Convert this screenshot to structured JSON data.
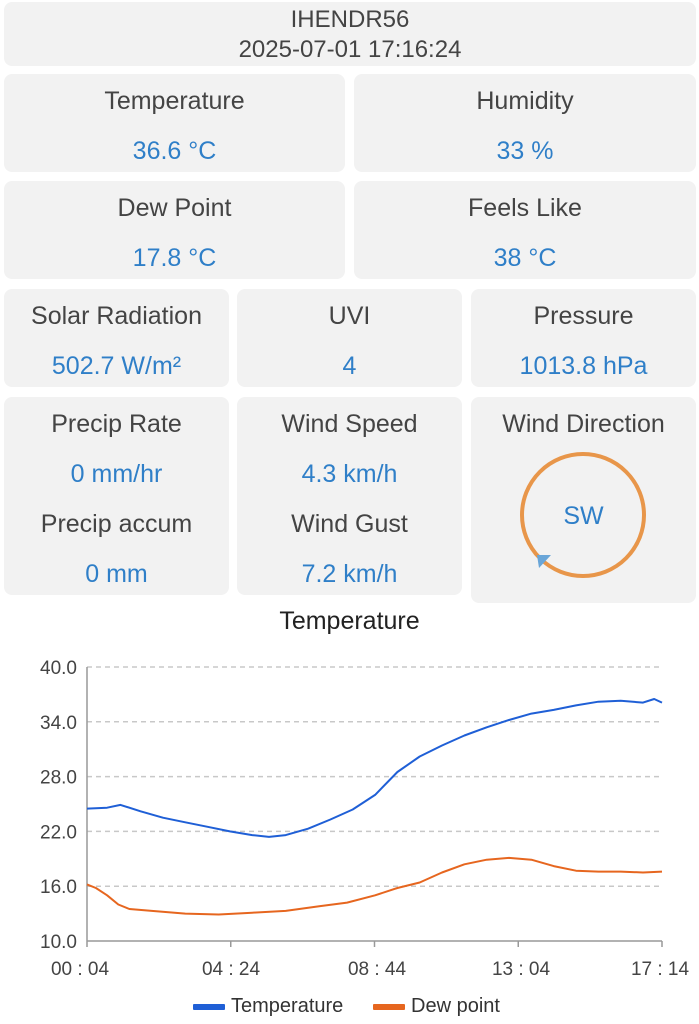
{
  "header": {
    "station_id": "IHENDR56",
    "timestamp": "2025-07-01 17:16:24"
  },
  "cards": {
    "temperature": {
      "label": "Temperature",
      "value": "36.6 °C"
    },
    "humidity": {
      "label": "Humidity",
      "value": "33 %"
    },
    "dew_point": {
      "label": "Dew Point",
      "value": "17.8 °C"
    },
    "feels_like": {
      "label": "Feels Like",
      "value": "38 °C"
    },
    "solar": {
      "label": "Solar Radiation",
      "value": "502.7 W/m²"
    },
    "uvi": {
      "label": "UVI",
      "value": "4"
    },
    "pressure": {
      "label": "Pressure",
      "value": "1013.8 hPa"
    },
    "precip_rate": {
      "label": "Precip Rate",
      "value": "0 mm/hr"
    },
    "precip_accum": {
      "label": "Precip accum",
      "value": "0 mm"
    },
    "wind_speed": {
      "label": "Wind Speed",
      "value": "4.3 km/h"
    },
    "wind_gust": {
      "label": "Wind Gust",
      "value": "7.2 km/h"
    },
    "wind_direction": {
      "label": "Wind Direction",
      "value": "SW",
      "ring_color": "#e8964a",
      "arrow_color": "#6aa6d8"
    }
  },
  "chart_data": {
    "type": "line",
    "title": "Temperature",
    "xlabel": "",
    "ylabel": "",
    "x_ticks": [
      "00 : 04",
      "04 : 24",
      "08 : 44",
      "13 : 04",
      "17 : 14"
    ],
    "y_ticks": [
      "40.0",
      "34.0",
      "28.0",
      "22.0",
      "16.0",
      "10.0"
    ],
    "ylim": [
      10,
      40
    ],
    "x_range_minutes": [
      4,
      1034
    ],
    "grid": "horizontal-dashed",
    "legend_position": "bottom",
    "series": [
      {
        "name": "Temperature",
        "color": "#1f5fd6",
        "points": [
          [
            4,
            24.5
          ],
          [
            40,
            24.6
          ],
          [
            64,
            24.9
          ],
          [
            100,
            24.2
          ],
          [
            140,
            23.5
          ],
          [
            180,
            23.0
          ],
          [
            220,
            22.5
          ],
          [
            260,
            22.0
          ],
          [
            300,
            21.6
          ],
          [
            330,
            21.4
          ],
          [
            360,
            21.6
          ],
          [
            400,
            22.3
          ],
          [
            440,
            23.3
          ],
          [
            480,
            24.4
          ],
          [
            520,
            26.0
          ],
          [
            560,
            28.5
          ],
          [
            600,
            30.2
          ],
          [
            640,
            31.4
          ],
          [
            680,
            32.5
          ],
          [
            720,
            33.4
          ],
          [
            760,
            34.2
          ],
          [
            800,
            34.9
          ],
          [
            840,
            35.3
          ],
          [
            880,
            35.8
          ],
          [
            920,
            36.2
          ],
          [
            960,
            36.3
          ],
          [
            1000,
            36.1
          ],
          [
            1020,
            36.5
          ],
          [
            1034,
            36.1
          ]
        ]
      },
      {
        "name": "Dew point",
        "color": "#e6661f",
        "points": [
          [
            4,
            16.2
          ],
          [
            20,
            15.8
          ],
          [
            40,
            15.0
          ],
          [
            60,
            14.0
          ],
          [
            80,
            13.5
          ],
          [
            120,
            13.3
          ],
          [
            180,
            13.0
          ],
          [
            240,
            12.9
          ],
          [
            300,
            13.1
          ],
          [
            360,
            13.3
          ],
          [
            420,
            13.8
          ],
          [
            470,
            14.2
          ],
          [
            520,
            15.0
          ],
          [
            560,
            15.8
          ],
          [
            600,
            16.4
          ],
          [
            640,
            17.5
          ],
          [
            680,
            18.4
          ],
          [
            720,
            18.9
          ],
          [
            760,
            19.1
          ],
          [
            800,
            18.9
          ],
          [
            840,
            18.2
          ],
          [
            880,
            17.7
          ],
          [
            920,
            17.6
          ],
          [
            960,
            17.6
          ],
          [
            1000,
            17.5
          ],
          [
            1034,
            17.6
          ]
        ]
      }
    ]
  }
}
